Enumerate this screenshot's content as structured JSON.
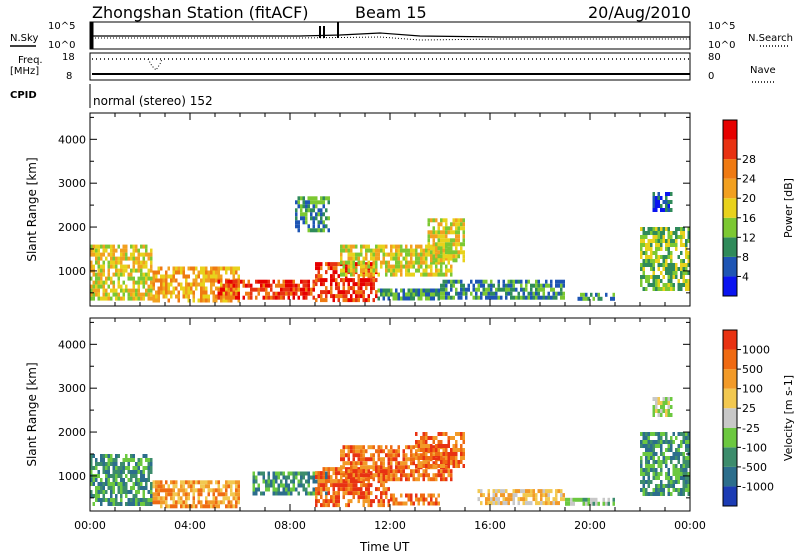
{
  "header": {
    "station_title": "Zhongshan Station (fitACF)",
    "beam": "Beam 15",
    "date": "20/Aug/2010"
  },
  "strip_panels": {
    "nsky": {
      "left_label": "N.Sky",
      "left_ticks": [
        "10^5",
        "10^0"
      ],
      "right_label": "N.Search",
      "right_ticks": [
        "10^5",
        "10^0"
      ]
    },
    "freq": {
      "left_label_1": "Freq.",
      "left_label_2": "[MHz]",
      "left_ticks": [
        "18",
        "8"
      ],
      "right_label": "Nave",
      "right_ticks": [
        "80",
        "0"
      ]
    },
    "cpid": {
      "label": "CPID",
      "text": "normal (stereo) 152"
    }
  },
  "chart_data": [
    {
      "type": "heatmap",
      "name": "power",
      "ylabel": "Slant Range [km]",
      "xlabel": "Time UT",
      "ylim": [
        200,
        4600
      ],
      "yticks": [
        "1000",
        "2000",
        "3000",
        "4000"
      ],
      "xticks": [
        "00:00",
        "04:00",
        "08:00",
        "12:00",
        "16:00",
        "20:00",
        "00:00"
      ],
      "xlim_hours": [
        0,
        24
      ],
      "colorbar": {
        "label": "Power [dB]",
        "ticks": [
          "4",
          "8",
          "12",
          "16",
          "20",
          "24",
          "28"
        ],
        "colors": [
          "#0a14f0",
          "#1e55b4",
          "#2f8a5a",
          "#7cc832",
          "#e8d21c",
          "#f2a020",
          "#ef7a12",
          "#e83212",
          "#e60000"
        ]
      },
      "regions": [
        {
          "t": [
            0.0,
            2.5
          ],
          "r": [
            350,
            1600
          ],
          "level": 4
        },
        {
          "t": [
            2.5,
            6.0
          ],
          "r": [
            350,
            1100
          ],
          "level": 5
        },
        {
          "t": [
            5.0,
            9.0
          ],
          "r": [
            350,
            800
          ],
          "level": 7
        },
        {
          "t": [
            9.0,
            11.5
          ],
          "r": [
            350,
            1200
          ],
          "level": 7
        },
        {
          "t": [
            10.0,
            14.5
          ],
          "r": [
            900,
            1600
          ],
          "level": 4
        },
        {
          "t": [
            11.5,
            14.0
          ],
          "r": [
            350,
            600
          ],
          "level": 2
        },
        {
          "t": [
            13.5,
            15.0
          ],
          "r": [
            1200,
            2200
          ],
          "level": 4
        },
        {
          "t": [
            14.0,
            19.0
          ],
          "r": [
            350,
            800
          ],
          "level": 2
        },
        {
          "t": [
            19.5,
            21.0
          ],
          "r": [
            350,
            500
          ],
          "level": 2
        },
        {
          "t": [
            22.0,
            24.0
          ],
          "r": [
            600,
            2000
          ],
          "level": 3
        },
        {
          "t": [
            22.5,
            23.3
          ],
          "r": [
            2400,
            2800
          ],
          "level": 1
        },
        {
          "t": [
            8.2,
            9.6
          ],
          "r": [
            1900,
            2700
          ],
          "level": 2
        }
      ]
    },
    {
      "type": "heatmap",
      "name": "velocity",
      "ylabel": "Slant Range [km]",
      "xlabel": "Time UT",
      "ylim": [
        200,
        4600
      ],
      "yticks": [
        "1000",
        "2000",
        "3000",
        "4000"
      ],
      "xticks": [
        "00:00",
        "04:00",
        "08:00",
        "12:00",
        "16:00",
        "20:00",
        "00:00"
      ],
      "xlim_hours": [
        0,
        24
      ],
      "colorbar": {
        "label": "Velocity [m s-1]",
        "ticks": [
          "1000",
          "500",
          "100",
          "25",
          "-25",
          "-100",
          "-500",
          "-1000"
        ],
        "colors": [
          "#1c3cb4",
          "#2c6e8c",
          "#3c8c6c",
          "#6cc840",
          "#c8c8c8",
          "#f2c850",
          "#f29a28",
          "#ef6a12",
          "#e83212"
        ]
      },
      "regions": [
        {
          "t": [
            0.0,
            2.5
          ],
          "r": [
            350,
            1500
          ],
          "level": 2
        },
        {
          "t": [
            2.5,
            6.0
          ],
          "r": [
            350,
            900
          ],
          "level": 6
        },
        {
          "t": [
            6.5,
            9.5
          ],
          "r": [
            600,
            1100
          ],
          "level": 2
        },
        {
          "t": [
            9.0,
            12.0
          ],
          "r": [
            350,
            1200
          ],
          "level": 7
        },
        {
          "t": [
            10.0,
            14.5
          ],
          "r": [
            900,
            1700
          ],
          "level": 7
        },
        {
          "t": [
            12.0,
            14.0
          ],
          "r": [
            350,
            600
          ],
          "level": 7
        },
        {
          "t": [
            13.0,
            15.0
          ],
          "r": [
            1200,
            2000
          ],
          "level": 7
        },
        {
          "t": [
            15.5,
            19.0
          ],
          "r": [
            350,
            700
          ],
          "level": 5
        },
        {
          "t": [
            19.0,
            21.0
          ],
          "r": [
            350,
            500
          ],
          "level": 3
        },
        {
          "t": [
            22.0,
            24.0
          ],
          "r": [
            600,
            2000
          ],
          "level": 2
        },
        {
          "t": [
            22.5,
            23.3
          ],
          "r": [
            2400,
            2800
          ],
          "level": 4
        }
      ]
    }
  ]
}
